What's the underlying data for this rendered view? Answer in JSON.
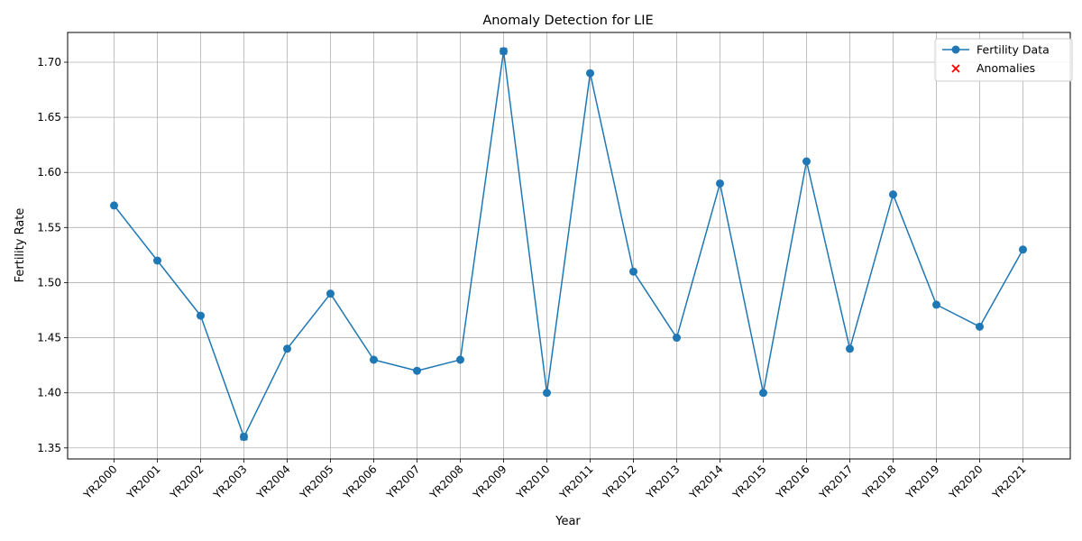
{
  "chart_data": {
    "type": "line",
    "title": "Anomaly Detection for LIE",
    "xlabel": "Year",
    "ylabel": "Fertility Rate",
    "categories": [
      "YR2000",
      "YR2001",
      "YR2002",
      "YR2003",
      "YR2004",
      "YR2005",
      "YR2006",
      "YR2007",
      "YR2008",
      "YR2009",
      "YR2010",
      "YR2011",
      "YR2012",
      "YR2013",
      "YR2014",
      "YR2015",
      "YR2016",
      "YR2017",
      "YR2018",
      "YR2019",
      "YR2020",
      "YR2021"
    ],
    "series": [
      {
        "name": "Fertility Data",
        "color": "#1f77b4",
        "marker": "circle",
        "values": [
          1.57,
          1.52,
          1.47,
          1.36,
          1.44,
          1.49,
          1.43,
          1.42,
          1.43,
          1.71,
          1.4,
          1.69,
          1.51,
          1.45,
          1.59,
          1.4,
          1.61,
          1.44,
          1.58,
          1.48,
          1.46,
          1.53
        ]
      },
      {
        "name": "Anomalies",
        "color": "#ff0000",
        "marker": "x",
        "points": [
          {
            "x": "YR2003",
            "y": 1.36
          },
          {
            "x": "YR2009",
            "y": 1.71
          }
        ]
      }
    ],
    "ylim": [
      1.34,
      1.727
    ],
    "yticks": [
      1.35,
      1.4,
      1.45,
      1.5,
      1.55,
      1.6,
      1.65,
      1.7
    ],
    "ytick_labels": [
      "1.35",
      "1.40",
      "1.45",
      "1.50",
      "1.55",
      "1.60",
      "1.65",
      "1.70"
    ],
    "grid": true,
    "legend_position": "top-right"
  }
}
